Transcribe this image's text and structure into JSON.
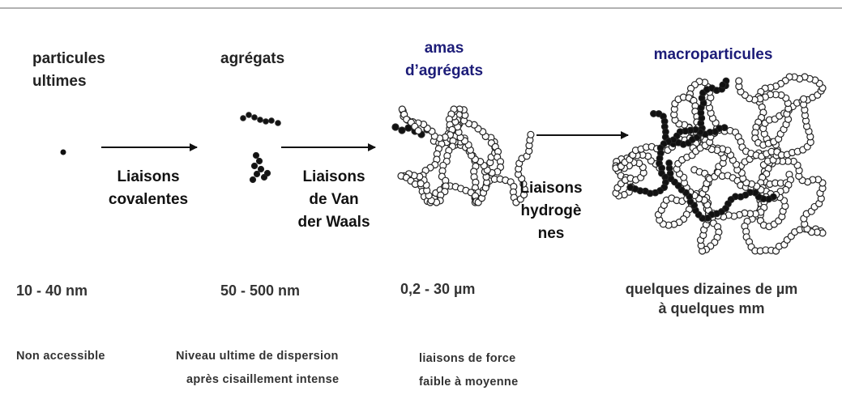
{
  "stages": [
    {
      "name_lines": [
        "particules",
        "ultimes"
      ],
      "size_lines": [
        "10 - 40 nm"
      ],
      "note_lines": [
        "Non accessible"
      ]
    },
    {
      "name_lines": [
        "agrégats"
      ],
      "size_lines": [
        "50 - 500 nm"
      ],
      "note_lines": [
        "Niveau ultime de dispersion",
        "après cisaillement intense"
      ]
    },
    {
      "name_lines": [
        "amas",
        "d’agrégats"
      ],
      "size_lines": [
        "0,2 - 30 µm"
      ],
      "note_lines": [
        "liaisons de force",
        "faible à moyenne"
      ]
    },
    {
      "name_lines": [
        "macroparticules"
      ],
      "size_lines": [
        "quelques dizaines de µm",
        "à quelques mm"
      ],
      "note_lines": []
    }
  ],
  "links": [
    {
      "lines": [
        "Liaisons",
        "covalentes"
      ]
    },
    {
      "lines": [
        "Liaisons",
        "de Van",
        "der Waals"
      ]
    },
    {
      "lines": [
        "Liaisons",
        "hydrogè",
        "nes"
      ]
    }
  ]
}
